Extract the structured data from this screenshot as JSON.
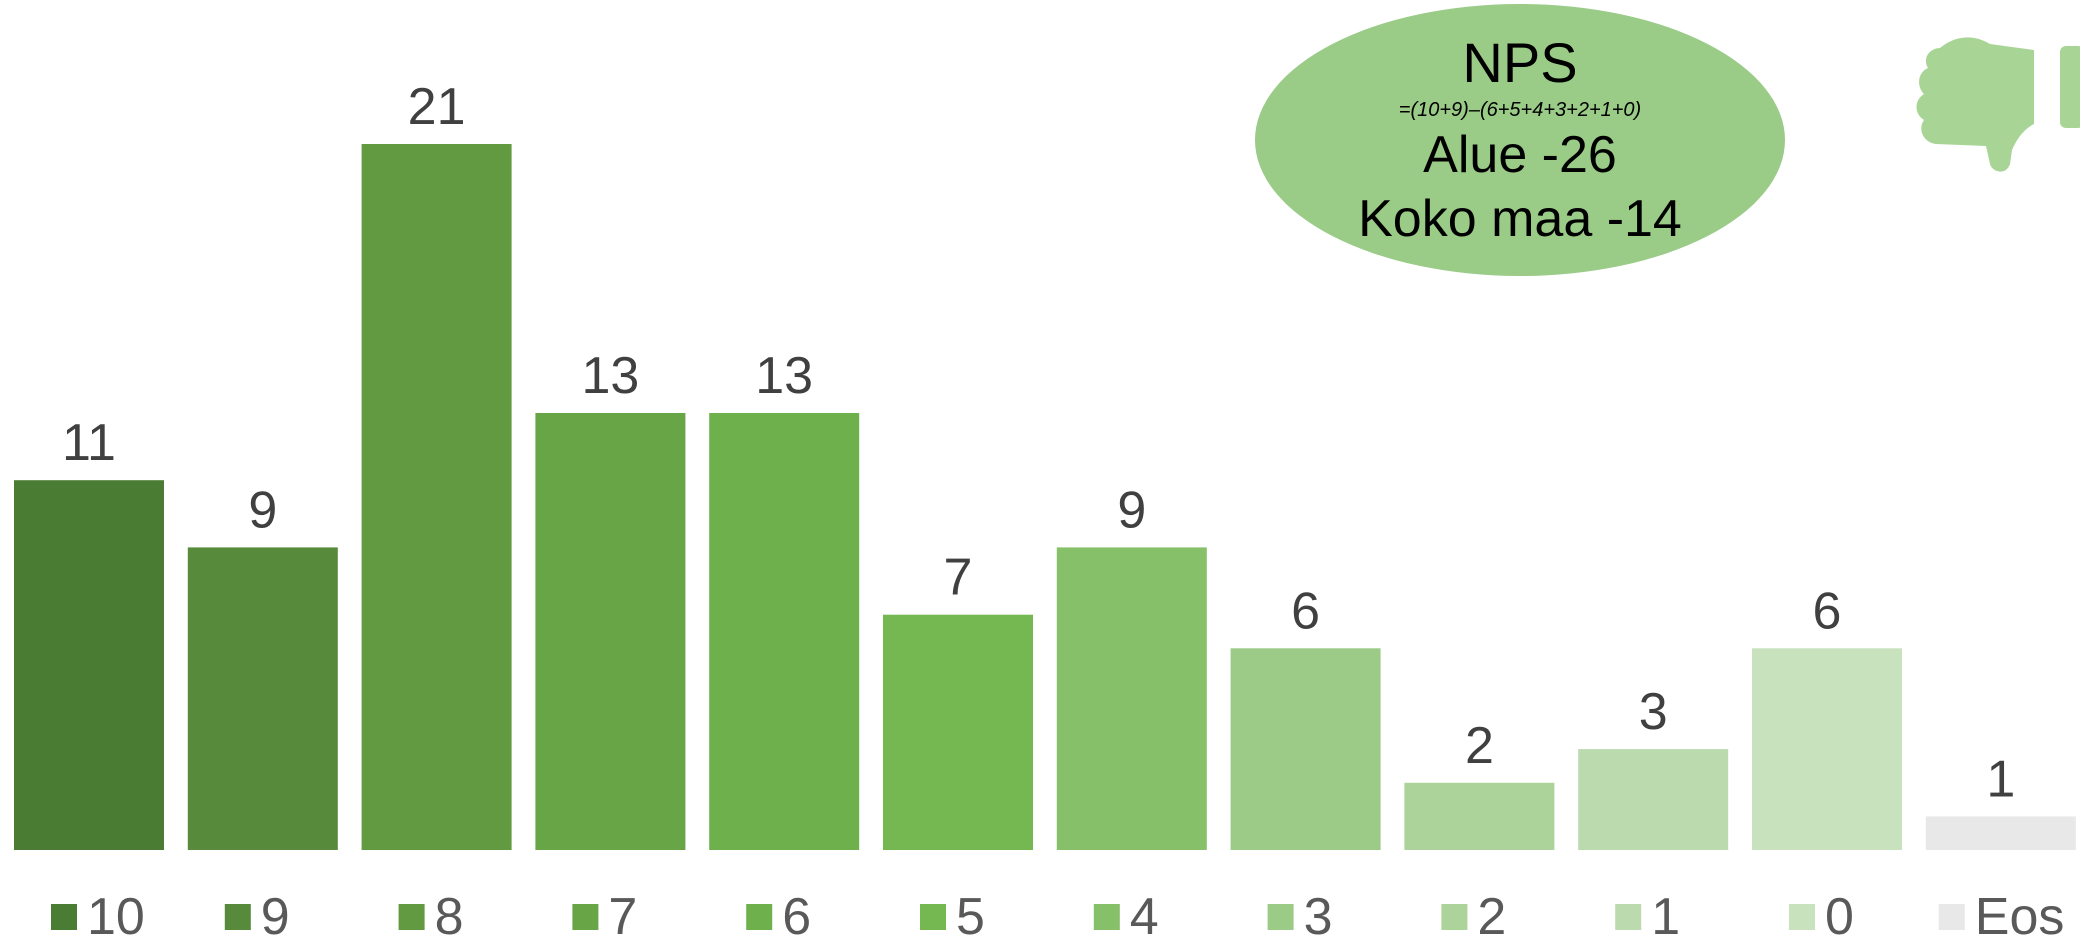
{
  "chart_data": {
    "type": "bar",
    "categories": [
      "10",
      "9",
      "8",
      "7",
      "6",
      "5",
      "4",
      "3",
      "2",
      "1",
      "0",
      "Eos"
    ],
    "values": [
      11,
      9,
      21,
      13,
      13,
      7,
      9,
      6,
      2,
      3,
      6,
      1
    ],
    "colors": [
      "#4a7c34",
      "#578b3b",
      "#629a41",
      "#68a547",
      "#6eb04c",
      "#75b750",
      "#86c068",
      "#9bcb86",
      "#abd39a",
      "#bbdbaf",
      "#c8e2bd",
      "#e8e8e8"
    ],
    "title": "",
    "xlabel": "",
    "ylabel": "",
    "ylim": [
      0,
      21
    ],
    "grid": false,
    "legend": "bottom"
  },
  "nps_box": {
    "title": "NPS",
    "formula": "=(10+9)–(6+5+4+3+2+1+0)",
    "line1": "Alue -26",
    "line2": "Koko maa -14",
    "fill": "#9acb87"
  },
  "icons": {
    "thumbs_down": "thumbs-down-icon",
    "icon_color": "#a8d496"
  }
}
